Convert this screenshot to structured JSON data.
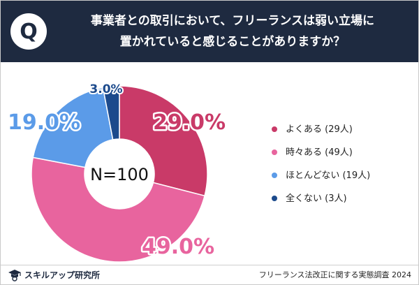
{
  "header": {
    "q_label": "Q",
    "question_line1": "事業者との取引において、フリーランスは弱い立場に",
    "question_line2": "置かれていると感じることがありますか？"
  },
  "chart_data": {
    "type": "pie",
    "center_label": "N=100",
    "categories": [
      "よくある",
      "時々ある",
      "ほとんどない",
      "全くない"
    ],
    "values": [
      29.0,
      49.0,
      19.0,
      3.0
    ],
    "counts": [
      29,
      49,
      19,
      3
    ],
    "value_labels": [
      "29.0%",
      "49.0%",
      "19.0%",
      "3.0%"
    ],
    "colors": [
      "#c93a68",
      "#e8649e",
      "#5b9be8",
      "#1c4a8c"
    ],
    "legend_placement": "right"
  },
  "legend": {
    "items": [
      {
        "label": "よくある (29人)",
        "color": "#c93a68"
      },
      {
        "label": "時々ある (49人)",
        "color": "#e8649e"
      },
      {
        "label": "ほとんどない (19人)",
        "color": "#5b9be8"
      },
      {
        "label": "全くない (3人)",
        "color": "#1c4a8c"
      }
    ]
  },
  "footer": {
    "brand": "スキルアップ研究所",
    "survey": "フリーランス法改正に関する実態調査 2024"
  }
}
